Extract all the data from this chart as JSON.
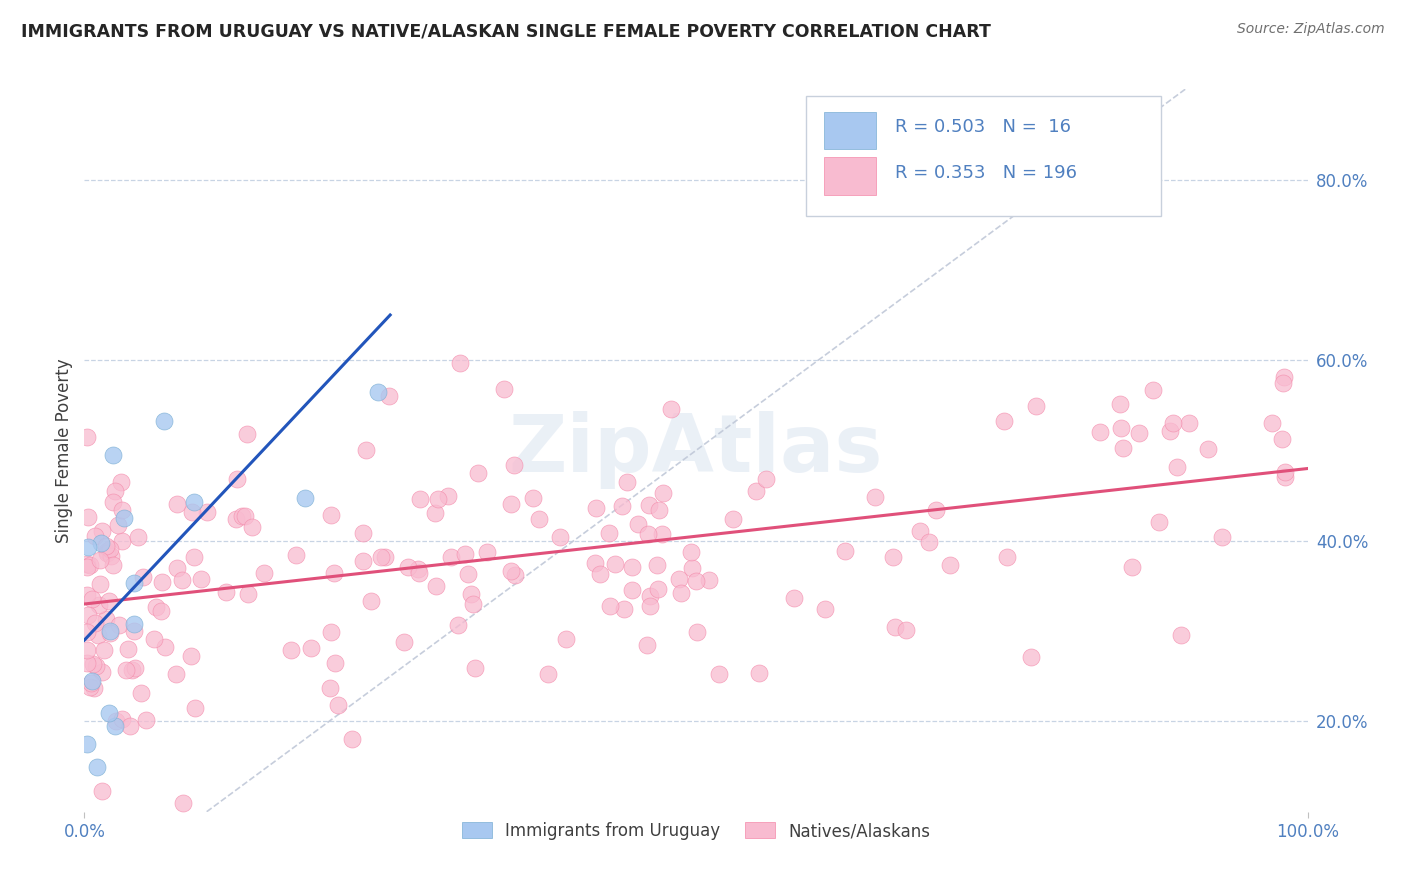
{
  "title": "IMMIGRANTS FROM URUGUAY VS NATIVE/ALASKAN SINGLE FEMALE POVERTY CORRELATION CHART",
  "source_text": "Source: ZipAtlas.com",
  "ylabel": "Single Female Poverty",
  "xlim": [
    0.0,
    100.0
  ],
  "ylim": [
    10.0,
    90.0
  ],
  "xticks": [
    0.0,
    100.0
  ],
  "yticks": [
    20.0,
    40.0,
    60.0,
    80.0
  ],
  "legend_bottom": [
    "Immigrants from Uruguay",
    "Natives/Alaskans"
  ],
  "blue_line_x": [
    0.0,
    25.0
  ],
  "blue_line_y": [
    29.0,
    65.0
  ],
  "pink_line_x": [
    0.0,
    100.0
  ],
  "pink_line_y": [
    33.0,
    48.0
  ],
  "ref_line_x": [
    10.0,
    90.0
  ],
  "ref_line_y": [
    10.0,
    90.0
  ],
  "blue_color": "#a8c8f0",
  "blue_marker_color": "#7bafd4",
  "blue_line_color": "#2255bb",
  "pink_color": "#f8bbd0",
  "pink_marker_color": "#f48aaa",
  "pink_line_color": "#e0507a",
  "ref_line_color": "#c0c8d8",
  "watermark_text": "ZipAtlas",
  "background_color": "#ffffff",
  "grid_color": "#c8d4e4",
  "tick_color": "#5080c0",
  "label_color": "#404040"
}
